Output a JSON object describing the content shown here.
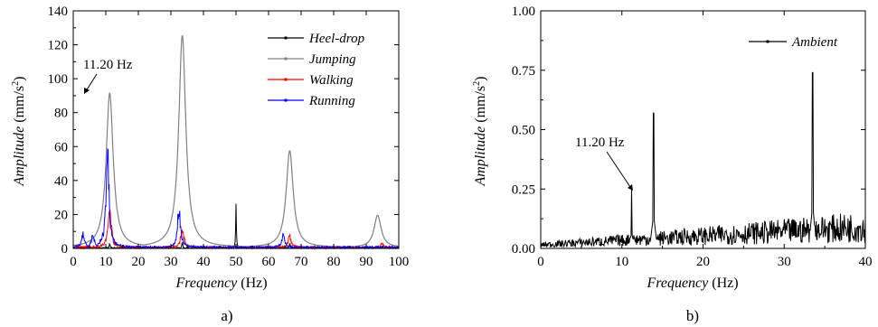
{
  "chart_data": [
    {
      "type": "line",
      "panel_label": "a)",
      "xlabel_italic": "Frequency",
      "xlabel_unit": " (Hz)",
      "ylabel_italic": "Amplitude",
      "ylabel_unit": " (mm/s",
      "ylabel_sup": "2",
      "ylabel_close": ")",
      "xlim": [
        0,
        100
      ],
      "ylim": [
        0,
        140
      ],
      "xticks": [
        "0",
        "10",
        "20",
        "30",
        "40",
        "50",
        "60",
        "70",
        "80",
        "90",
        "100"
      ],
      "yticks": [
        "0",
        "20",
        "40",
        "60",
        "80",
        "100",
        "120",
        "140"
      ],
      "annotation": {
        "text": "11.20 Hz",
        "x": 11.2,
        "y": 92
      },
      "legend_position": "top-right",
      "series": [
        {
          "name": "Heel-drop",
          "color": "#000000",
          "peaks": [
            {
              "f": 50,
              "a": 26
            },
            {
              "f": 11.2,
              "a": 3
            },
            {
              "f": 33.5,
              "a": 4
            },
            {
              "f": 66.5,
              "a": 3
            }
          ]
        },
        {
          "name": "Jumping",
          "color": "#808080",
          "peaks": [
            {
              "f": 11.2,
              "a": 91
            },
            {
              "f": 33.5,
              "a": 125
            },
            {
              "f": 66.5,
              "a": 57
            },
            {
              "f": 93.5,
              "a": 19
            }
          ]
        },
        {
          "name": "Walking",
          "color": "#ff0000",
          "peaks": [
            {
              "f": 11.2,
              "a": 30
            },
            {
              "f": 33.5,
              "a": 14
            },
            {
              "f": 66.5,
              "a": 8
            },
            {
              "f": 95,
              "a": 3
            }
          ]
        },
        {
          "name": "Running",
          "color": "#0000ff",
          "peaks": [
            {
              "f": 10.5,
              "a": 72
            },
            {
              "f": 32.5,
              "a": 28
            },
            {
              "f": 64.5,
              "a": 9
            },
            {
              "f": 6,
              "a": 9
            },
            {
              "f": 3,
              "a": 10
            }
          ]
        }
      ]
    },
    {
      "type": "line",
      "panel_label": "b)",
      "xlabel_italic": "Frequency",
      "xlabel_unit": " (Hz)",
      "ylabel_italic": "Amplitude",
      "ylabel_unit": " (mm/s",
      "ylabel_sup": "2",
      "ylabel_close": ")",
      "xlim": [
        0,
        40
      ],
      "ylim": [
        0,
        1
      ],
      "xticks": [
        "0",
        "10",
        "20",
        "30",
        "40"
      ],
      "yticks": [
        "0.00",
        "0.25",
        "0.50",
        "0.75",
        "1.00"
      ],
      "annotation": {
        "text": "11.20 Hz",
        "x": 11.2,
        "y": 0.25
      },
      "legend_position": "top-right",
      "series": [
        {
          "name": "Ambient",
          "color": "#000000",
          "peaks": [
            {
              "f": 11.2,
              "a": 0.25
            },
            {
              "f": 13.9,
              "a": 0.57
            },
            {
              "f": 33.5,
              "a": 0.74
            }
          ],
          "noise_start": 0.02,
          "noise_end": 0.12
        }
      ]
    }
  ]
}
